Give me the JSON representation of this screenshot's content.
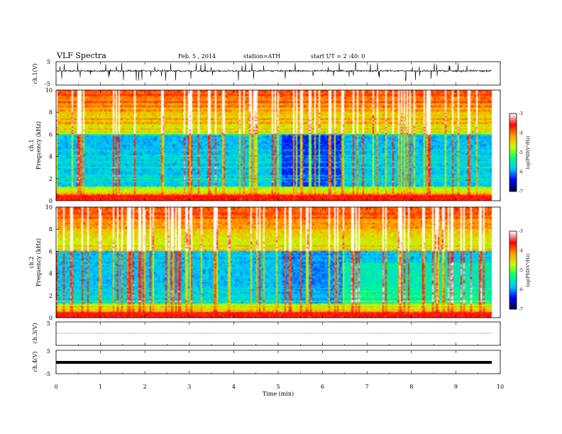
{
  "header": {
    "title": "VLF Spectra",
    "date": "Feb. 5 , 2014",
    "station": "station=ATH",
    "start": "start UT =  2 :40: 0"
  },
  "colors": {
    "colormap": [
      "#00003a",
      "#0000ff",
      "#00c8ff",
      "#00ff7f",
      "#c8ff00",
      "#ffa000",
      "#ff0000",
      "#ffffff"
    ]
  },
  "chart_data": [
    {
      "id": "ch1",
      "type": "line",
      "ylabel": "ch.1(V)",
      "ylim": [
        -5,
        5
      ],
      "yticks": [
        "5",
        "-5"
      ],
      "description_values": {
        "baseline": 0,
        "range": [
          -5,
          5
        ]
      }
    },
    {
      "id": "spec1",
      "type": "heatmap",
      "ylabel_top": "ch.1",
      "ylabel": "Frequency (kHz)",
      "ylim": [
        0,
        10
      ],
      "yticks": [
        "0",
        "2",
        "4",
        "6",
        "8",
        "10"
      ],
      "xlim": [
        0,
        10
      ],
      "colorbar": {
        "label": "log(PSD(V²/Hz)",
        "ticks": [
          "-3",
          "-4",
          "-5",
          "-6",
          "-7"
        ],
        "range": [
          -7,
          -3
        ]
      },
      "data_end_min": 9.8,
      "transition_min": [
        5.05,
        6.45
      ]
    },
    {
      "id": "spec2",
      "type": "heatmap",
      "ylabel_top": "ch.2",
      "ylabel": "Frequency (kHz)",
      "ylim": [
        0,
        10
      ],
      "yticks": [
        "0",
        "2",
        "4",
        "6",
        "8",
        "10"
      ],
      "xlim": [
        0,
        10
      ],
      "colorbar": {
        "label": "log(PSD(V²/Hz)",
        "ticks": [
          "-3",
          "-4",
          "-5",
          "-6",
          "-7"
        ],
        "range": [
          -7,
          -3
        ]
      },
      "data_end_min": 9.8,
      "transition_min": [
        5.05,
        6.45
      ]
    },
    {
      "id": "ch3",
      "type": "line",
      "ylabel": "ch.3(V)",
      "ylim": [
        -5,
        5
      ],
      "yticks": [
        "5"
      ],
      "description_values": {
        "baseline": 0
      }
    },
    {
      "id": "ch4",
      "type": "line",
      "ylabel": "ch.4(V)",
      "ylim": [
        -5,
        5
      ],
      "yticks": [
        "5",
        "-5"
      ],
      "description_values": {
        "baseline": 0
      }
    }
  ],
  "xaxis": {
    "label": "Time (min)",
    "ticks": [
      "0",
      "1",
      "2",
      "3",
      "4",
      "5",
      "6",
      "7",
      "8",
      "9",
      "10"
    ],
    "xlim": [
      0,
      10
    ]
  }
}
